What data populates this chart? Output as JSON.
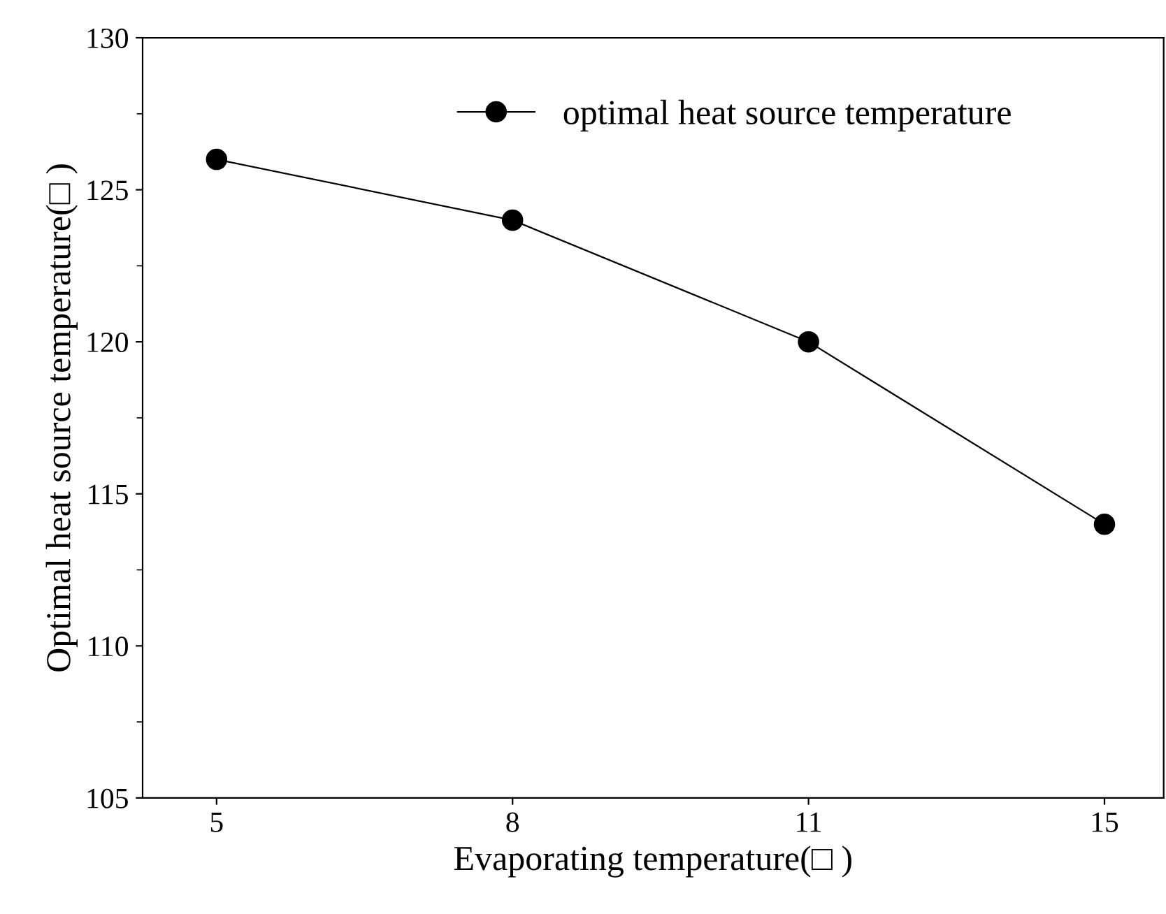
{
  "chart_data": {
    "type": "line",
    "xlabel": "Evaporating temperature(□ )",
    "ylabel": "Optimal heat source temperature(□ )",
    "categories": [
      "5",
      "8",
      "11",
      "15"
    ],
    "series": [
      {
        "name": "optimal heat source temperature",
        "color": "#000000",
        "values": [
          126,
          124,
          120,
          114
        ]
      }
    ],
    "ylim": [
      105,
      130
    ],
    "yticks": [
      105,
      110,
      115,
      120,
      125,
      130
    ],
    "marker": "circle",
    "line_style": "solid",
    "legend": "top",
    "grid": false
  }
}
